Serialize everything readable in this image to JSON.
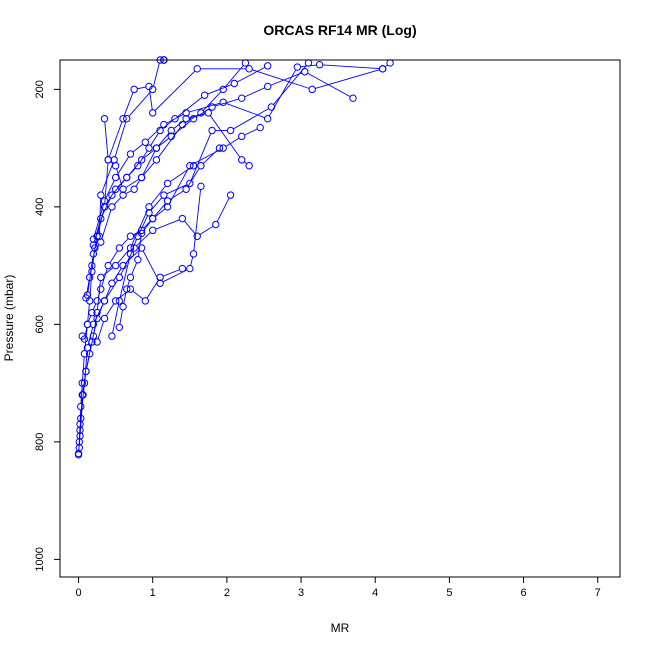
{
  "chart_data": {
    "type": "line",
    "title": "ORCAS RF14 MR (Log)",
    "xlabel": "MR",
    "ylabel": "Pressure (mbar)",
    "xlim": [
      -0.25,
      7.3
    ],
    "ylim": [
      1030,
      150
    ],
    "y_reversed": true,
    "grid": false,
    "legend": "none",
    "x_ticks": [
      0,
      1,
      2,
      3,
      4,
      5,
      6,
      7
    ],
    "y_ticks": [
      200,
      400,
      600,
      800,
      1000
    ],
    "series_color": "#0000ff",
    "series": [
      {
        "x": [
          0.0,
          0.01,
          0.02,
          0.03,
          0.05,
          0.08,
          0.12,
          0.15,
          0.18,
          0.22,
          0.28,
          0.3,
          0.48,
          0.65,
          1.0,
          1.1,
          1.15,
          1.15,
          1.15
        ],
        "y": [
          822,
          800,
          770,
          740,
          700,
          650,
          600,
          560,
          510,
          470,
          450,
          380,
          320,
          250,
          200,
          150,
          150,
          150,
          150
        ]
      },
      {
        "x": [
          0.0,
          0.02,
          0.05,
          0.1,
          0.15,
          0.2,
          0.25,
          0.3,
          0.5,
          0.7,
          0.95,
          1.2,
          1.55
        ],
        "y": [
          820,
          780,
          720,
          680,
          650,
          620,
          580,
          520,
          500,
          470,
          400,
          360,
          330
        ]
      },
      {
        "x": [
          0.01,
          0.03,
          0.08,
          0.12,
          0.2,
          0.35,
          0.55,
          0.75,
          1.0,
          1.4,
          1.6,
          1.85,
          2.05
        ],
        "y": [
          810,
          760,
          700,
          640,
          600,
          560,
          520,
          470,
          440,
          420,
          450,
          430,
          380
        ]
      },
      {
        "x": [
          0.02,
          0.06,
          0.1,
          0.18,
          0.25,
          0.35,
          0.45,
          0.6,
          0.85,
          1.1,
          1.5,
          1.55,
          1.65
        ],
        "y": [
          790,
          720,
          680,
          630,
          590,
          560,
          530,
          500,
          470,
          530,
          505,
          480,
          365
        ]
      },
      {
        "x": [
          0.05,
          0.08,
          0.12,
          0.18,
          0.25,
          0.3,
          0.4,
          0.55,
          0.7,
          0.85,
          1.0,
          1.2,
          1.5,
          1.95,
          2.2,
          2.45
        ],
        "y": [
          620,
          625,
          600,
          580,
          560,
          540,
          500,
          470,
          450,
          440,
          420,
          400,
          330,
          300,
          280,
          265
        ]
      },
      {
        "x": [
          0.1,
          0.15,
          0.2,
          0.3,
          0.45,
          0.6,
          0.75,
          0.85,
          1.05,
          1.25,
          1.45,
          1.75,
          2.2,
          2.3
        ],
        "y": [
          555,
          520,
          480,
          460,
          400,
          380,
          370,
          350,
          300,
          270,
          250,
          240,
          320,
          330
        ]
      },
      {
        "x": [
          0.12,
          0.18,
          0.25,
          0.35,
          0.5,
          0.65,
          0.8,
          0.95,
          1.1,
          1.3,
          1.7,
          2.1,
          2.55
        ],
        "y": [
          550,
          500,
          450,
          400,
          370,
          350,
          330,
          300,
          270,
          250,
          210,
          190,
          160
        ]
      },
      {
        "x": [
          0.2,
          0.3,
          0.45,
          0.65,
          0.85,
          1.05,
          1.25,
          1.55,
          1.8,
          2.2,
          2.55,
          3.05,
          3.7
        ],
        "y": [
          465,
          420,
          380,
          350,
          320,
          300,
          280,
          250,
          230,
          215,
          195,
          170,
          215
        ]
      },
      {
        "x": [
          0.2,
          0.35,
          0.5,
          0.7,
          0.9,
          1.15,
          1.45,
          1.95,
          2.55,
          2.95,
          3.25,
          4.1,
          4.2
        ],
        "y": [
          455,
          390,
          350,
          310,
          290,
          260,
          240,
          222,
          250,
          162,
          158,
          165,
          155
        ]
      },
      {
        "x": [
          0.25,
          0.35,
          0.4,
          0.6,
          0.75,
          0.95,
          1.0,
          1.6,
          2.3,
          3.15,
          4.1
        ],
        "y": [
          450,
          400,
          320,
          250,
          200,
          195,
          240,
          165,
          165,
          200,
          165
        ]
      },
      {
        "x": [
          0.35,
          0.4,
          0.5,
          0.6,
          0.85,
          1.05,
          1.4,
          1.65,
          1.95,
          2.25
        ],
        "y": [
          250,
          320,
          330,
          370,
          350,
          320,
          260,
          240,
          200,
          155
        ]
      },
      {
        "x": [
          0.45,
          0.55,
          0.7,
          0.8,
          0.95,
          1.15,
          1.5,
          1.8,
          2.05,
          2.6,
          3.1
        ],
        "y": [
          620,
          560,
          480,
          450,
          410,
          380,
          360,
          270,
          270,
          230,
          155
        ]
      },
      {
        "x": [
          0.55,
          0.6,
          0.65,
          0.7,
          0.8,
          0.85,
          1.0,
          1.2,
          1.45,
          1.65,
          1.9
        ],
        "y": [
          605,
          570,
          540,
          520,
          490,
          445,
          420,
          390,
          370,
          330,
          300
        ]
      },
      {
        "x": [
          0.25,
          0.35,
          0.5,
          0.7,
          0.9,
          1.1,
          1.4
        ],
        "y": [
          630,
          590,
          560,
          540,
          560,
          520,
          505
        ]
      }
    ]
  }
}
